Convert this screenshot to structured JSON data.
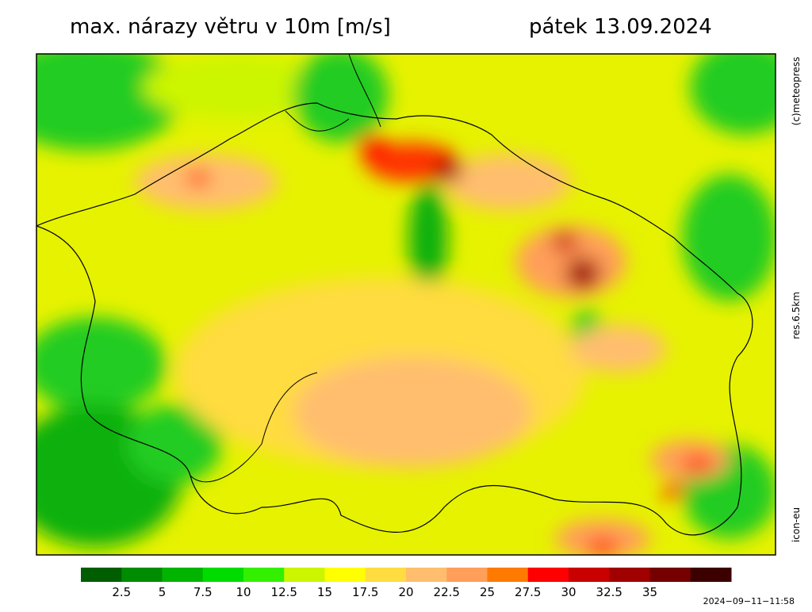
{
  "header": {
    "title": "max. nárazy větru v 10m [m/s]",
    "date": "pátek 13.09.2024"
  },
  "side_labels": {
    "copyright": "(c)meteopress",
    "resolution": "res.6.5km",
    "model": "icon-eu"
  },
  "legend": {
    "labels": [
      "2.5",
      "5",
      "7.5",
      "10",
      "12.5",
      "15",
      "17.5",
      "20",
      "22.5",
      "25",
      "27.5",
      "30",
      "32.5",
      "35"
    ],
    "colors": [
      "#005e00",
      "#008c00",
      "#00b400",
      "#00dc00",
      "#33f000",
      "#ccf500",
      "#ffff00",
      "#ffdc40",
      "#ffbe6e",
      "#ff9f5a",
      "#ff7a00",
      "#ff0000",
      "#c80000",
      "#a00000",
      "#740000",
      "#3c0000"
    ]
  },
  "footer": {
    "timestamp": "2024−09−11−11:58"
  }
}
